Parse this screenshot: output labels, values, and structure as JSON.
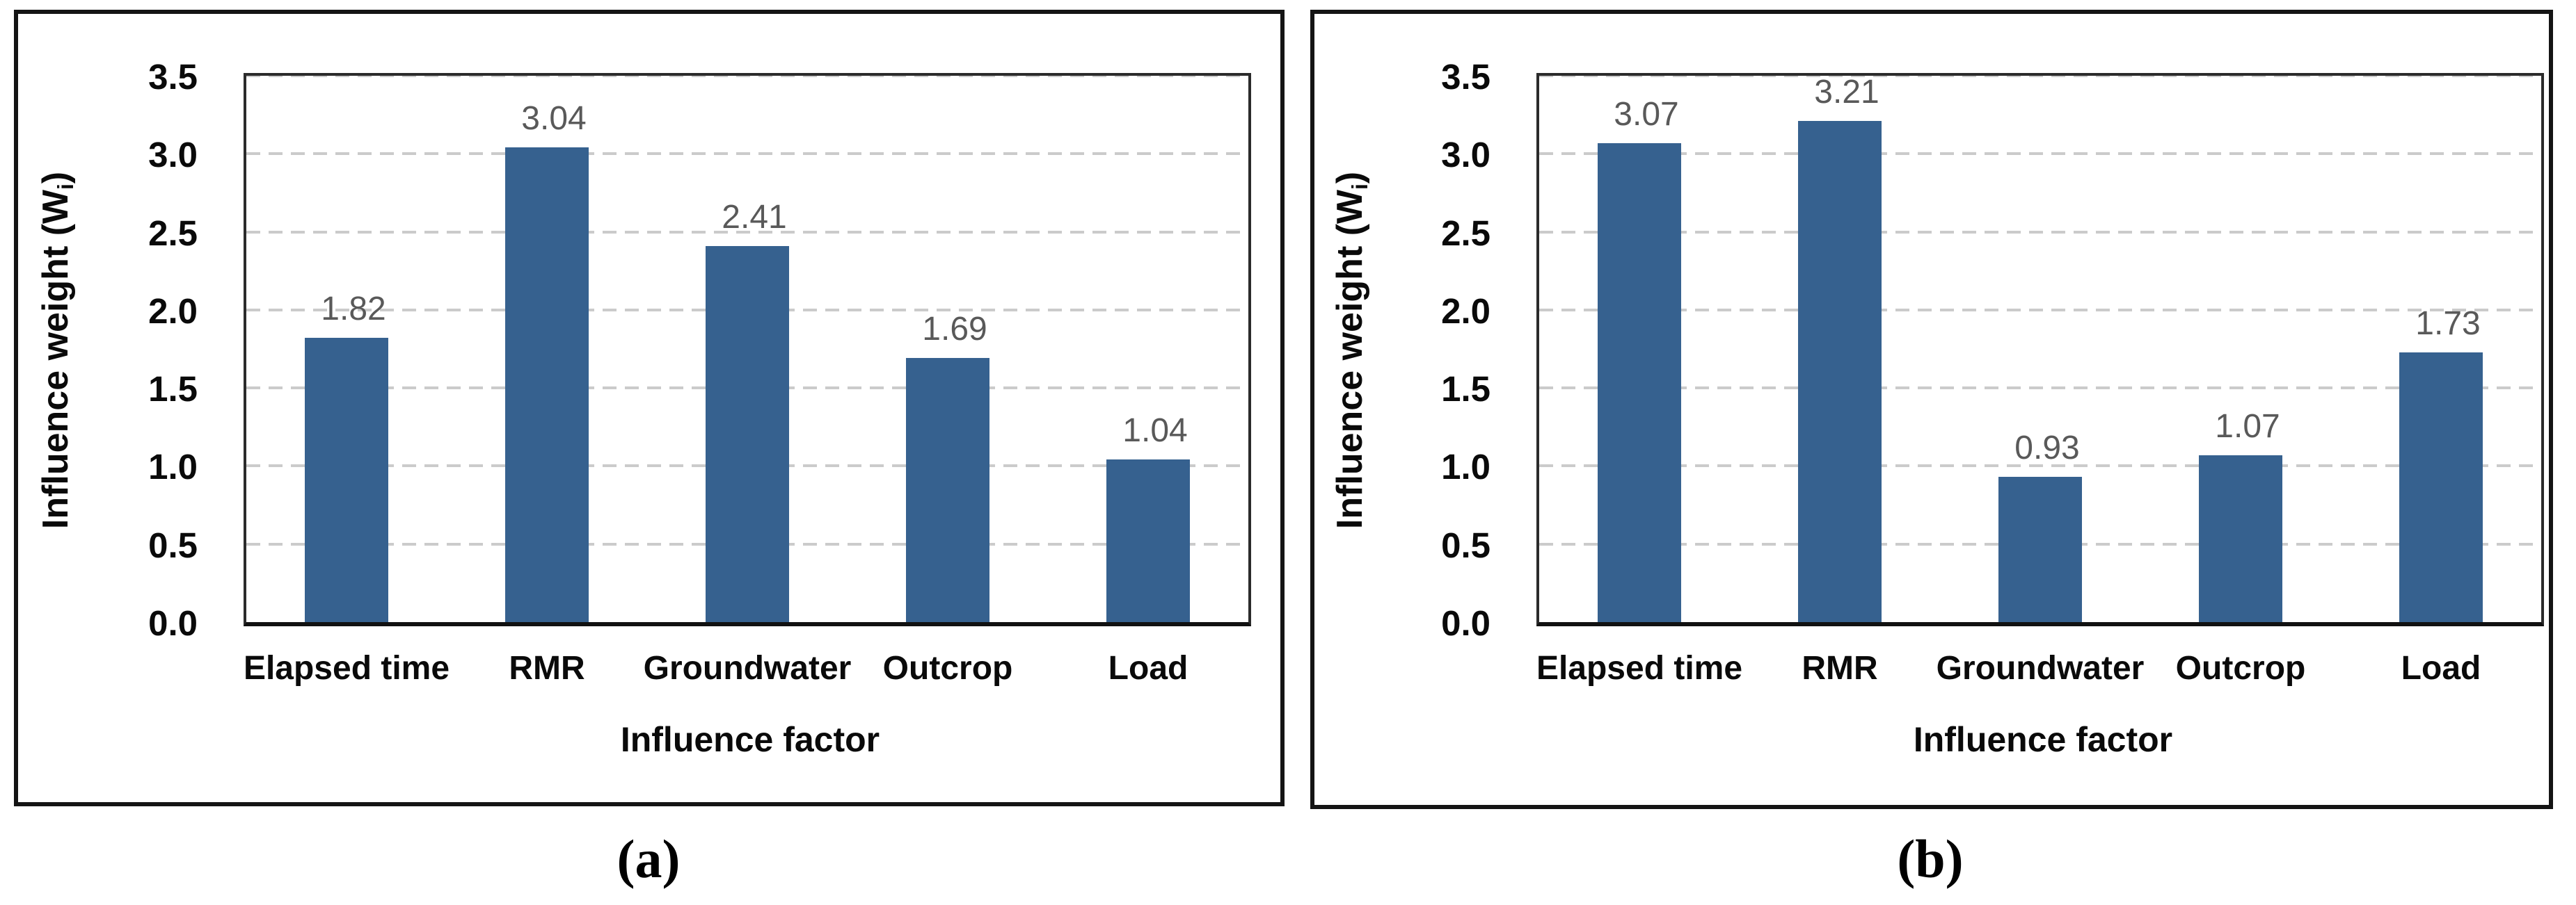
{
  "figure": {
    "background": "#ffffff",
    "bar_color": "#36618F",
    "grid_color": "#cbcbcb",
    "value_label_color": "#595959",
    "captions": [
      "(a)",
      "(b)"
    ]
  },
  "chart_data": [
    {
      "type": "bar",
      "panel": "a",
      "caption": "(a)",
      "xlabel": "Influence factor",
      "ylabel_pre": "Influence weight (W",
      "ylabel_sub": "i",
      "ylabel_post": ")",
      "categories": [
        "Elapsed time",
        "RMR",
        "Groundwater",
        "Outcrop",
        "Load"
      ],
      "values": [
        1.82,
        3.04,
        2.41,
        1.69,
        1.04
      ],
      "value_labels": [
        "1.82",
        "3.04",
        "2.41",
        "1.69",
        "1.04"
      ],
      "yticks": [
        "3.5",
        "3.0",
        "2.5",
        "2.0",
        "1.5",
        "1.0",
        "0.5",
        "0.0"
      ],
      "ylim": [
        0,
        3.5
      ],
      "grid": "horizontal-dashed",
      "legend": "none"
    },
    {
      "type": "bar",
      "panel": "b",
      "caption": "(b)",
      "xlabel": "Influence factor",
      "ylabel_pre": "Influence weight (W",
      "ylabel_sub": "i",
      "ylabel_post": ")",
      "categories": [
        "Elapsed time",
        "RMR",
        "Groundwater",
        "Outcrop",
        "Load"
      ],
      "values": [
        3.07,
        3.21,
        0.93,
        1.07,
        1.73
      ],
      "value_labels": [
        "3.07",
        "3.21",
        "0.93",
        "1.07",
        "1.73"
      ],
      "yticks": [
        "3.5",
        "3.0",
        "2.5",
        "2.0",
        "1.5",
        "1.0",
        "0.5",
        "0.0"
      ],
      "ylim": [
        0,
        3.5
      ],
      "grid": "horizontal-dashed",
      "legend": "none"
    }
  ]
}
